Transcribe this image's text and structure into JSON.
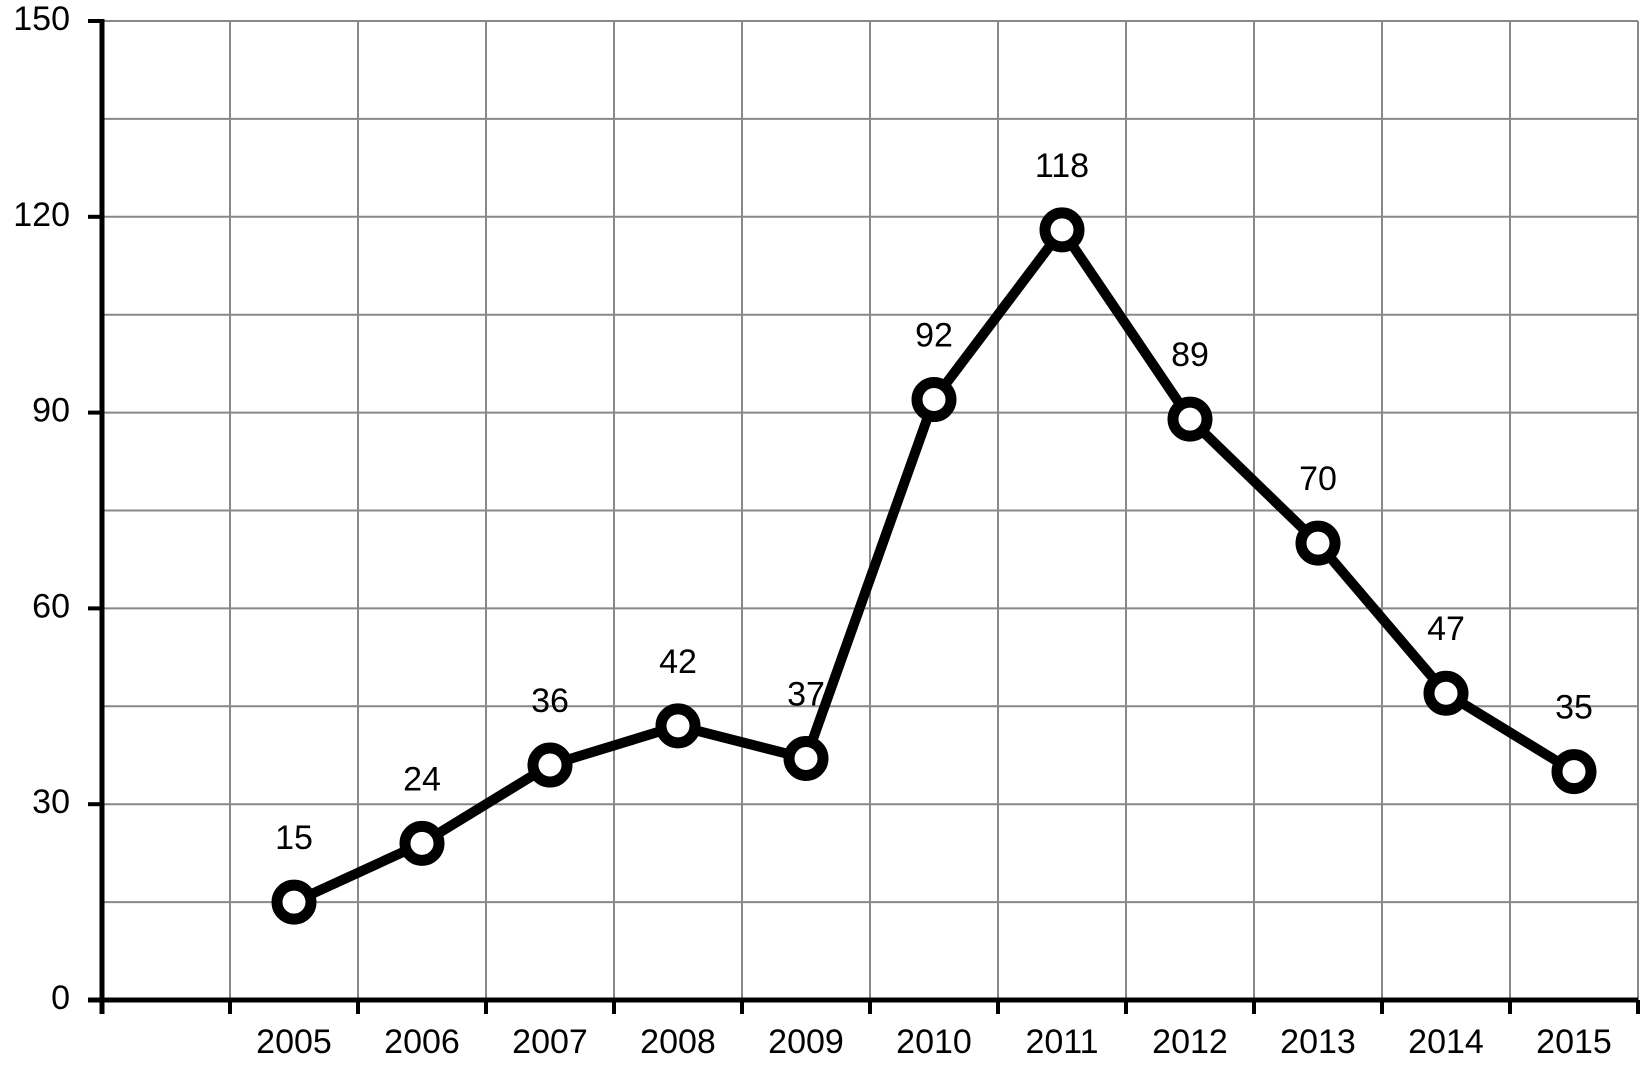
{
  "chart_data": {
    "type": "line",
    "categories": [
      null,
      "2005",
      "2006",
      "2007",
      "2008",
      "2009",
      "2010",
      "2011",
      "2012",
      "2013",
      "2014",
      "2015"
    ],
    "values": [
      null,
      15,
      24,
      36,
      42,
      37,
      92,
      118,
      89,
      70,
      47,
      35
    ],
    "color": "#000000",
    "ylim": [
      0,
      150
    ],
    "yticks": [
      0,
      30,
      60,
      90,
      120,
      150
    ],
    "y_minor_ticks": [
      15,
      45,
      75,
      105,
      135
    ],
    "grid": true
  }
}
